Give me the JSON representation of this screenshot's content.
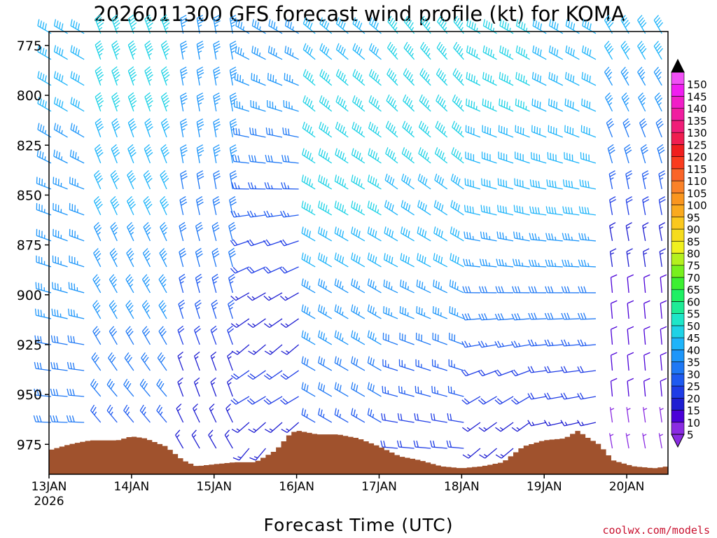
{
  "chart_data": {
    "type": "wind-barb-profile",
    "title": "2026011300 GFS forecast wind profile (kt) for KOMA",
    "xlabel": "Forecast Time (UTC)",
    "ylabel": "",
    "credit": "coolwx.com/models",
    "x_range_hours": [
      0,
      180
    ],
    "x_ticks": [
      {
        "hour": 0,
        "label": "13JAN"
      },
      {
        "hour": 24,
        "label": "14JAN"
      },
      {
        "hour": 48,
        "label": "15JAN"
      },
      {
        "hour": 72,
        "label": "16JAN"
      },
      {
        "hour": 96,
        "label": "17JAN"
      },
      {
        "hour": 120,
        "label": "18JAN"
      },
      {
        "hour": 144,
        "label": "19JAN"
      },
      {
        "hour": 168,
        "label": "20JAN"
      }
    ],
    "year_label": "2026",
    "y_range_hpa": [
      768,
      990
    ],
    "y_ticks": [
      775,
      800,
      825,
      850,
      875,
      900,
      925,
      950,
      975
    ],
    "grid": false,
    "colorbar": {
      "units": "kt",
      "levels": [
        5,
        10,
        15,
        20,
        25,
        30,
        35,
        40,
        45,
        50,
        55,
        60,
        65,
        70,
        75,
        80,
        85,
        90,
        95,
        100,
        105,
        110,
        115,
        120,
        125,
        130,
        135,
        140,
        145,
        150
      ],
      "colors": [
        "#8a2be2",
        "#4b00d8",
        "#1e1ed2",
        "#1e3ce6",
        "#1e5af0",
        "#1e78f5",
        "#1e96fa",
        "#1eb4fa",
        "#1ed2e6",
        "#1ee6c8",
        "#1eeb96",
        "#1ef064",
        "#3cf032",
        "#78f01e",
        "#b4f01e",
        "#f0f01e",
        "#f5dc1e",
        "#fac81e",
        "#faaa1e",
        "#fa961e",
        "#fa8228",
        "#fa6428",
        "#fa3c1e",
        "#f01e1e",
        "#f01e50",
        "#f01e78",
        "#f01ea0",
        "#f01ec8",
        "#f01ef0",
        "#f050f5"
      ],
      "arrow_top_color": "#000000",
      "arrow_bottom_color": "#8a2be2"
    },
    "terrain": {
      "color": "#a0522d",
      "surface_pressure_hpa": [
        {
          "hour": 0,
          "hpa": 978
        },
        {
          "hour": 6,
          "hpa": 975
        },
        {
          "hour": 12,
          "hpa": 973
        },
        {
          "hour": 20,
          "hpa": 973
        },
        {
          "hour": 24,
          "hpa": 971
        },
        {
          "hour": 28,
          "hpa": 972
        },
        {
          "hour": 34,
          "hpa": 976
        },
        {
          "hour": 39,
          "hpa": 983
        },
        {
          "hour": 43,
          "hpa": 986
        },
        {
          "hour": 48,
          "hpa": 985
        },
        {
          "hour": 54,
          "hpa": 984
        },
        {
          "hour": 60,
          "hpa": 984
        },
        {
          "hour": 66,
          "hpa": 978
        },
        {
          "hour": 70,
          "hpa": 970
        },
        {
          "hour": 72,
          "hpa": 968
        },
        {
          "hour": 78,
          "hpa": 970
        },
        {
          "hour": 84,
          "hpa": 970
        },
        {
          "hour": 90,
          "hpa": 972
        },
        {
          "hour": 96,
          "hpa": 976
        },
        {
          "hour": 102,
          "hpa": 981
        },
        {
          "hour": 108,
          "hpa": 983
        },
        {
          "hour": 114,
          "hpa": 986
        },
        {
          "hour": 120,
          "hpa": 987
        },
        {
          "hour": 126,
          "hpa": 986
        },
        {
          "hour": 132,
          "hpa": 984
        },
        {
          "hour": 138,
          "hpa": 976
        },
        {
          "hour": 144,
          "hpa": 973
        },
        {
          "hour": 150,
          "hpa": 972
        },
        {
          "hour": 154,
          "hpa": 968
        },
        {
          "hour": 156,
          "hpa": 971
        },
        {
          "hour": 160,
          "hpa": 975
        },
        {
          "hour": 164,
          "hpa": 983
        },
        {
          "hour": 170,
          "hpa": 986
        },
        {
          "hour": 176,
          "hpa": 987
        },
        {
          "hour": 180,
          "hpa": 986
        }
      ]
    },
    "wind_profiles": {
      "description": "Representative wind speed (kt) and direction (deg, from) at listed pressure levels for each forecast time block",
      "levels_hpa": [
        775,
        800,
        825,
        850,
        875,
        900,
        925,
        950,
        975
      ],
      "segments": [
        {
          "hours": [
            0,
            12
          ],
          "speed_kt": [
            40,
            40,
            35,
            35,
            35,
            35,
            30,
            30,
            30
          ],
          "dir_deg": [
            300,
            300,
            300,
            290,
            290,
            285,
            280,
            275,
            270
          ]
        },
        {
          "hours": [
            12,
            36
          ],
          "speed_kt": [
            45,
            45,
            40,
            40,
            35,
            35,
            30,
            30,
            20
          ],
          "dir_deg": [
            340,
            340,
            340,
            335,
            335,
            330,
            330,
            320,
            320
          ]
        },
        {
          "hours": [
            36,
            54
          ],
          "speed_kt": [
            35,
            35,
            35,
            30,
            30,
            25,
            20,
            15,
            15
          ],
          "dir_deg": [
            350,
            350,
            350,
            350,
            345,
            345,
            340,
            340,
            330
          ]
        },
        {
          "hours": [
            54,
            72
          ],
          "speed_kt": [
            35,
            35,
            30,
            25,
            20,
            15,
            15,
            20,
            15
          ],
          "dir_deg": [
            300,
            290,
            280,
            270,
            250,
            240,
            230,
            240,
            220
          ]
        },
        {
          "hours": [
            72,
            96
          ],
          "speed_kt": [
            40,
            45,
            45,
            45,
            40,
            35,
            35,
            30,
            25
          ],
          "dir_deg": [
            310,
            310,
            305,
            300,
            300,
            300,
            300,
            300,
            300
          ]
        },
        {
          "hours": [
            96,
            120
          ],
          "speed_kt": [
            45,
            45,
            45,
            40,
            40,
            35,
            30,
            25,
            20
          ],
          "dir_deg": [
            320,
            315,
            310,
            305,
            300,
            295,
            290,
            285,
            275
          ]
        },
        {
          "hours": [
            120,
            144
          ],
          "speed_kt": [
            45,
            45,
            40,
            40,
            35,
            30,
            25,
            20,
            15
          ],
          "dir_deg": [
            300,
            295,
            290,
            285,
            280,
            270,
            260,
            240,
            230
          ]
        },
        {
          "hours": [
            144,
            162
          ],
          "speed_kt": [
            40,
            40,
            40,
            40,
            35,
            30,
            25,
            20,
            15
          ],
          "dir_deg": [
            300,
            295,
            290,
            280,
            275,
            270,
            265,
            260,
            255
          ]
        },
        {
          "hours": [
            162,
            180
          ],
          "speed_kt": [
            40,
            35,
            30,
            25,
            15,
            10,
            10,
            10,
            5
          ],
          "dir_deg": [
            330,
            330,
            340,
            350,
            350,
            355,
            355,
            355,
            350
          ]
        }
      ]
    }
  }
}
